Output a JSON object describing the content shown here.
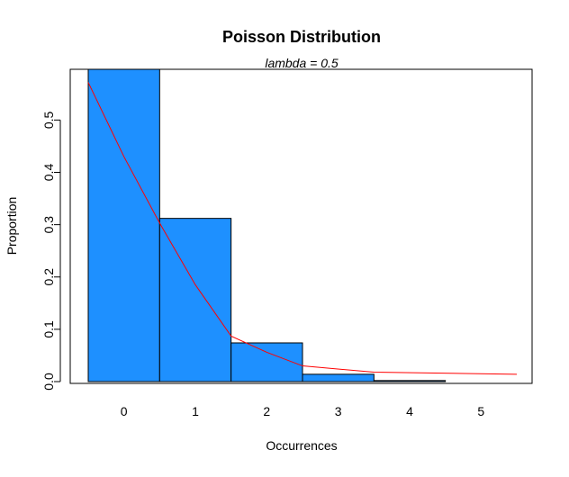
{
  "chart_data": {
    "type": "bar",
    "title": "Poisson Distribution",
    "subtitle": "lambda = 0.5",
    "xlabel": "Occurrences",
    "ylabel": "Proportion",
    "categories": [
      "0",
      "1",
      "2",
      "3",
      "4",
      "5"
    ],
    "x": [
      0,
      1,
      2,
      3,
      4,
      5
    ],
    "values": [
      0.597,
      0.312,
      0.074,
      0.014,
      0.002,
      0.0
    ],
    "ylim": [
      0,
      0.597
    ],
    "xlim": [
      -0.5,
      5.5
    ],
    "y_ticks": [
      "0.0",
      "0.1",
      "0.2",
      "0.3",
      "0.4",
      "0.5"
    ],
    "x_ticks": [
      "0",
      "1",
      "2",
      "3",
      "4",
      "5"
    ],
    "bar_color": "#1E90FF",
    "curve": {
      "color": "#FF0000",
      "points": [
        [
          -0.5,
          0.572
        ],
        [
          0.0,
          0.43
        ],
        [
          0.5,
          0.303
        ],
        [
          1.0,
          0.185
        ],
        [
          1.5,
          0.087
        ],
        [
          2.0,
          0.056
        ],
        [
          2.5,
          0.03
        ],
        [
          3.5,
          0.018
        ],
        [
          5.5,
          0.014
        ]
      ]
    },
    "grid": false
  }
}
